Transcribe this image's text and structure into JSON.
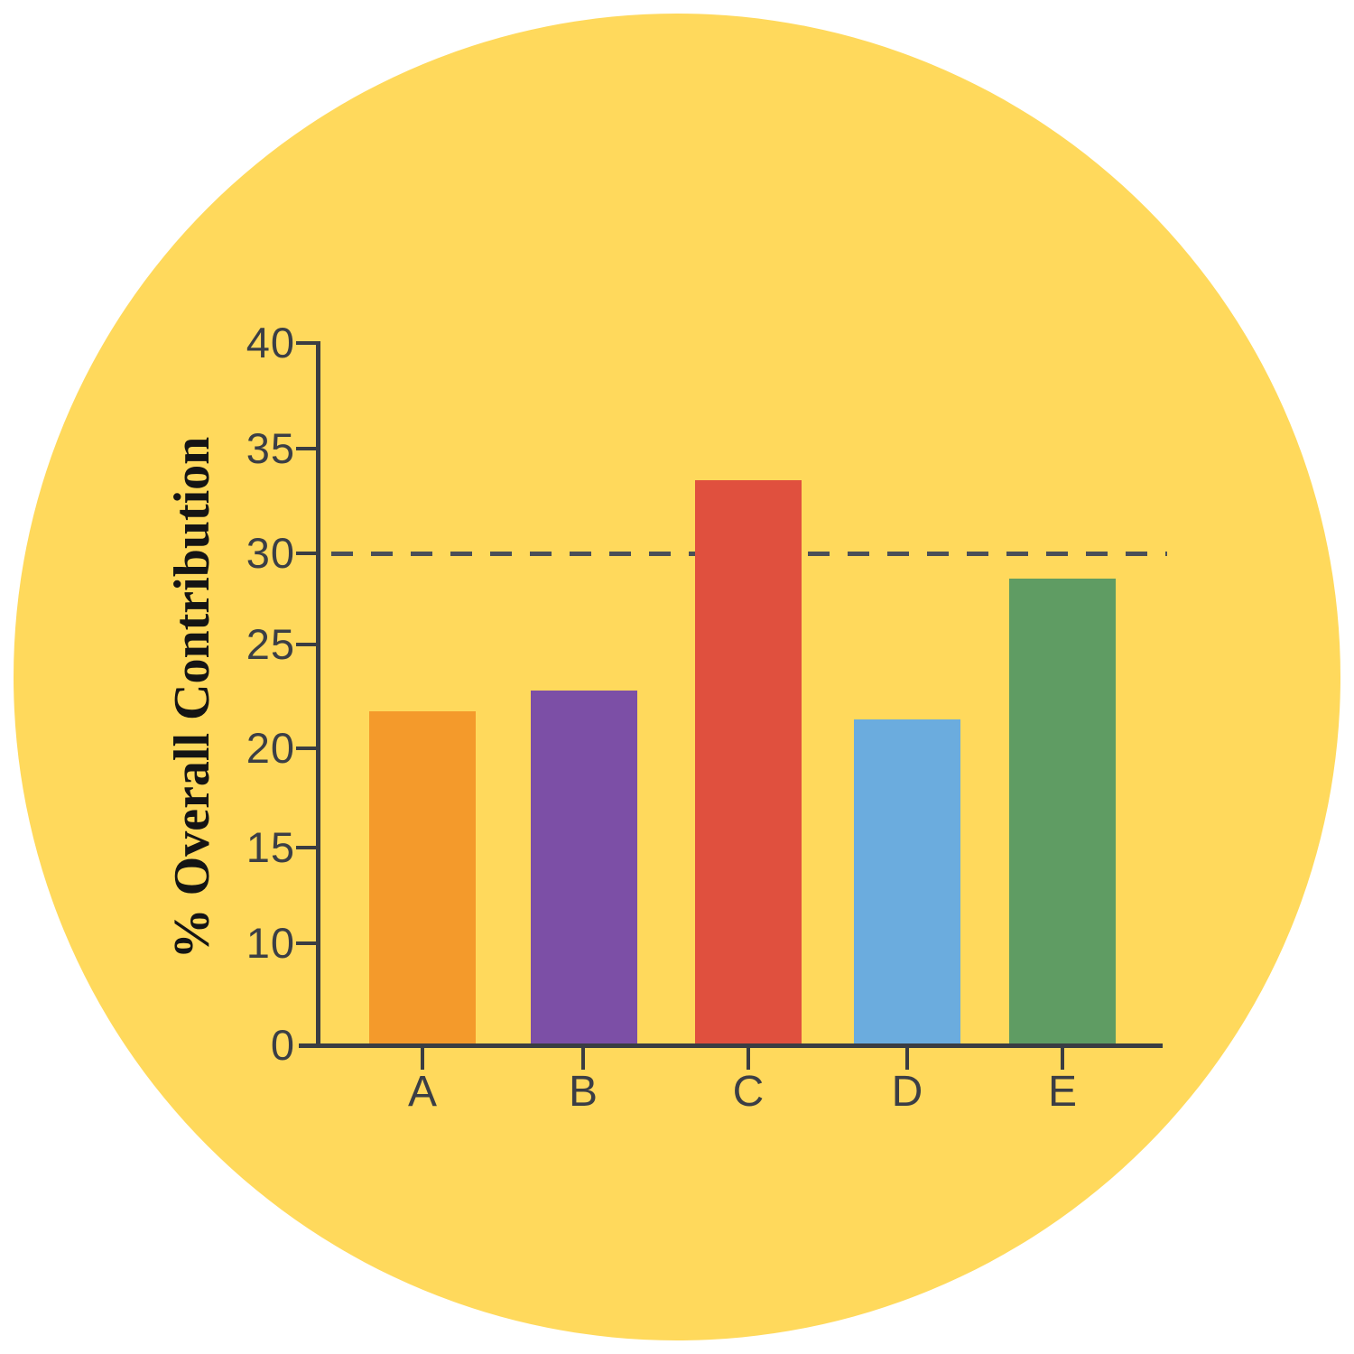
{
  "background": {
    "outer_color": "#FFFFFF",
    "circle_color": "#FFD95C"
  },
  "chart_data": {
    "type": "bar",
    "categories": [
      "A",
      "B",
      "C",
      "D",
      "E"
    ],
    "values": [
      21.8,
      22.8,
      33.5,
      21.4,
      28.6
    ],
    "bar_colors": [
      "#F49A2B",
      "#7C4FA6",
      "#E0503E",
      "#6BACDE",
      "#5F9C63"
    ],
    "title": "",
    "xlabel": "",
    "ylabel": "% Overall Contribution",
    "ytick_labels": [
      "0",
      "10",
      "15",
      "20",
      "25",
      "30",
      "35",
      "40"
    ],
    "ytick_values": [
      0,
      10,
      15,
      20,
      25,
      30,
      35,
      40
    ],
    "ylim": [
      0,
      40
    ],
    "grid": false,
    "legend": false,
    "reference_line": {
      "value": 30,
      "style": "dashed",
      "color": "#4A4F57"
    },
    "axis_color": "#3A3D42",
    "tick_label_color": "#3B3E45",
    "ylabel_color": "#141414"
  }
}
